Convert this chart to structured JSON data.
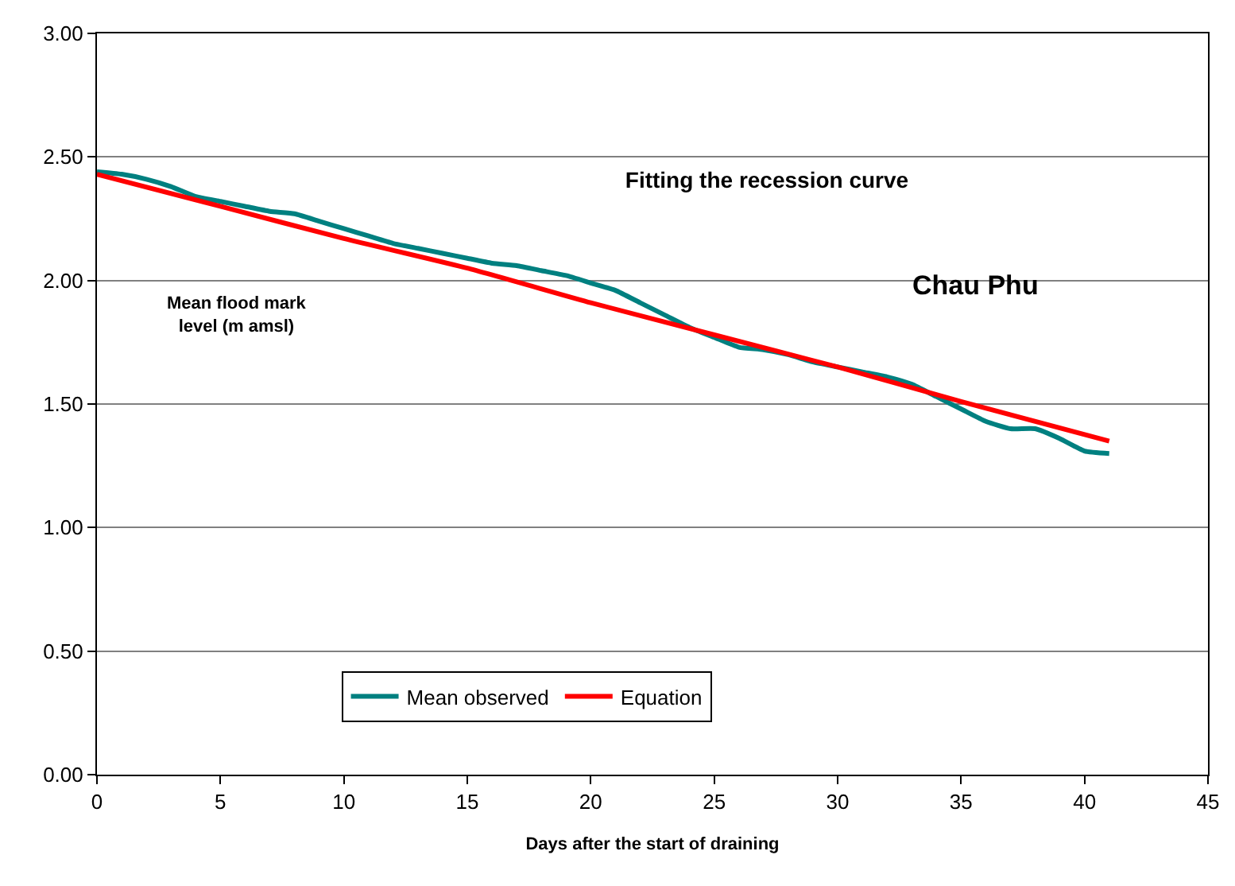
{
  "chart_data": {
    "type": "line",
    "title": "Fitting the recession curve",
    "xlabel": "Days after the start of draining",
    "ylabel": "Mean flood mark level (m amsl)",
    "annotations": [
      "Chau Phu"
    ],
    "xlim": [
      0,
      45
    ],
    "xticks": [
      0,
      5,
      10,
      15,
      20,
      25,
      30,
      35,
      40,
      45
    ],
    "ylim": [
      0,
      3
    ],
    "yticks": [
      {
        "value": 0,
        "label": "0.00"
      },
      {
        "value": 0.5,
        "label": "0.50"
      },
      {
        "value": 1,
        "label": "1.00"
      },
      {
        "value": 1.5,
        "label": "1.50"
      },
      {
        "value": 2,
        "label": "2.00"
      },
      {
        "value": 2.5,
        "label": "2.50"
      },
      {
        "value": 3,
        "label": "3.00"
      }
    ],
    "grid": "y",
    "legend": "bottom",
    "marker": "none",
    "line_style": "solid",
    "series": [
      {
        "name": "Mean observed",
        "color": "#008080",
        "x": [
          0,
          1,
          2,
          3,
          4,
          5,
          6,
          7,
          8,
          9,
          10,
          11,
          12,
          13,
          14,
          15,
          16,
          17,
          18,
          19,
          20,
          21,
          22,
          23,
          24,
          25,
          26,
          27,
          28,
          29,
          30,
          31,
          32,
          33,
          34,
          35,
          36,
          37,
          38,
          39,
          40,
          41
        ],
        "values": [
          2.44,
          2.43,
          2.41,
          2.38,
          2.34,
          2.32,
          2.3,
          2.28,
          2.27,
          2.24,
          2.21,
          2.18,
          2.15,
          2.13,
          2.11,
          2.09,
          2.07,
          2.06,
          2.04,
          2.02,
          1.99,
          1.96,
          1.91,
          1.86,
          1.81,
          1.77,
          1.73,
          1.72,
          1.7,
          1.67,
          1.65,
          1.63,
          1.61,
          1.58,
          1.53,
          1.48,
          1.43,
          1.4,
          1.4,
          1.36,
          1.31,
          1.3
        ]
      },
      {
        "name": "Equation",
        "color": "#ff0000",
        "x": [
          0,
          5,
          10,
          15,
          20,
          25,
          30,
          35,
          41
        ],
        "values": [
          2.43,
          2.3,
          2.17,
          2.05,
          1.91,
          1.78,
          1.65,
          1.51,
          1.35
        ]
      }
    ]
  }
}
